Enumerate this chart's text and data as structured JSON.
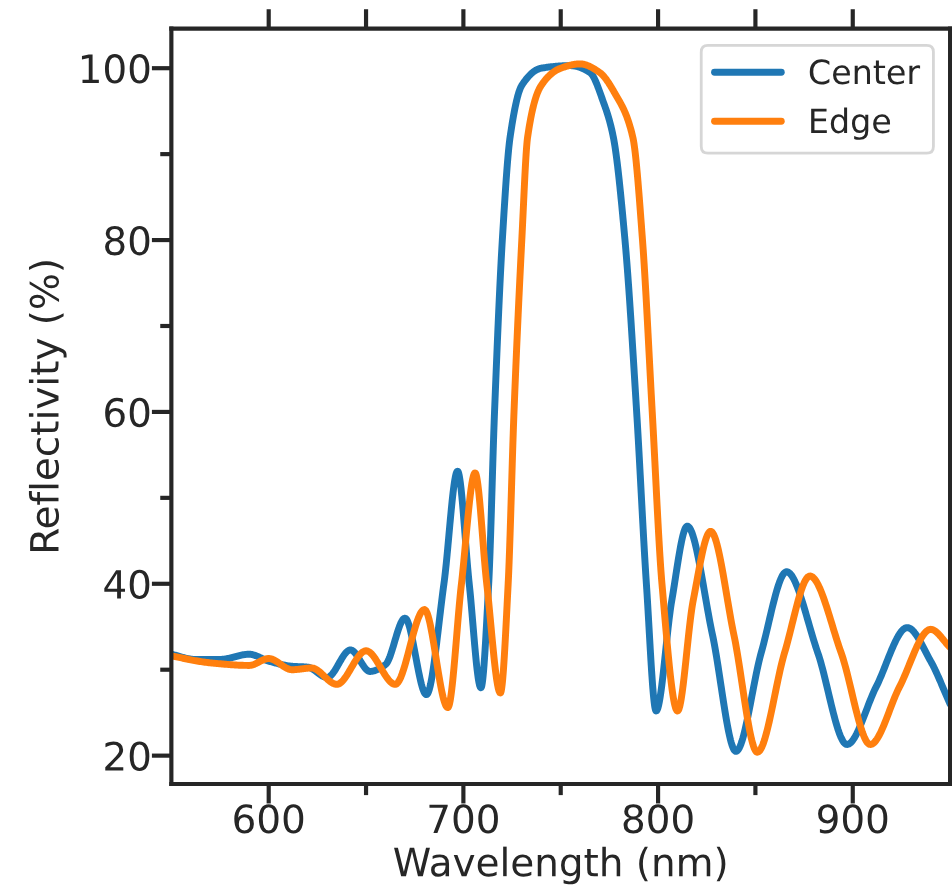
{
  "chart_data": {
    "type": "line",
    "xlabel": "Wavelength (nm)",
    "ylabel": "Reflectivity (%)",
    "xlim": [
      550,
      950
    ],
    "ylim": [
      16.7,
      104.6
    ],
    "xticks": [
      600,
      {
        "value": 650,
        "label": null
      },
      700,
      {
        "value": 750,
        "label": null
      },
      800,
      {
        "value": 850,
        "label": null
      },
      900
    ],
    "yticks": [
      20,
      {
        "value": 30,
        "label": null
      },
      40,
      {
        "value": 50,
        "label": null
      },
      60,
      {
        "value": 70,
        "label": null
      },
      80,
      {
        "value": 90,
        "label": null
      },
      100
    ],
    "grid": false,
    "legend": "top right",
    "marker": "none",
    "line_style": "solid",
    "series": [
      {
        "name": "Center",
        "color": "#1f77b4",
        "x": [
          550,
          562,
          575,
          590,
          600,
          612,
          620,
          630,
          642,
          652,
          660,
          670,
          681,
          690,
          697,
          703,
          709,
          713,
          716,
          720,
          724,
          730,
          740,
          755,
          765,
          772,
          777,
          783,
          789,
          794,
          799,
          807,
          815,
          828,
          840,
          853,
          866,
          882,
          897,
          912,
          928,
          940,
          950
        ],
        "values": [
          31.8,
          31.2,
          31.2,
          31.8,
          31.0,
          30.4,
          30.3,
          29.1,
          32.3,
          29.8,
          30.6,
          36.0,
          27.1,
          40,
          53.1,
          40,
          27.9,
          40,
          60,
          80,
          92,
          98,
          100,
          100.3,
          99.5,
          96,
          92,
          80,
          60,
          40,
          25.2,
          38,
          46.7,
          34,
          20.5,
          32,
          41.4,
          32,
          21.3,
          28,
          34.9,
          31,
          26.0
        ]
      },
      {
        "name": "Edge",
        "color": "#ff7f0e",
        "x": [
          550,
          570,
          590,
          600,
          612,
          622,
          635,
          650,
          665,
          680,
          692,
          699,
          706,
          712,
          719,
          723,
          726,
          730,
          733,
          740,
          750,
          760,
          770,
          778,
          787,
          792,
          797,
          802,
          810,
          818,
          827,
          839,
          851,
          865,
          878,
          894,
          909,
          924,
          940,
          950
        ],
        "values": [
          31.6,
          30.8,
          30.5,
          31.3,
          30.0,
          30.2,
          28.3,
          32.2,
          28.3,
          37.0,
          25.6,
          40,
          52.9,
          40,
          27.3,
          40,
          60,
          80,
          92,
          98,
          100,
          100.5,
          99.5,
          97,
          92,
          80,
          60,
          40,
          25.2,
          38,
          46.1,
          34,
          20.4,
          32,
          40.9,
          32,
          21.3,
          28,
          34.7,
          32.6
        ]
      }
    ]
  }
}
